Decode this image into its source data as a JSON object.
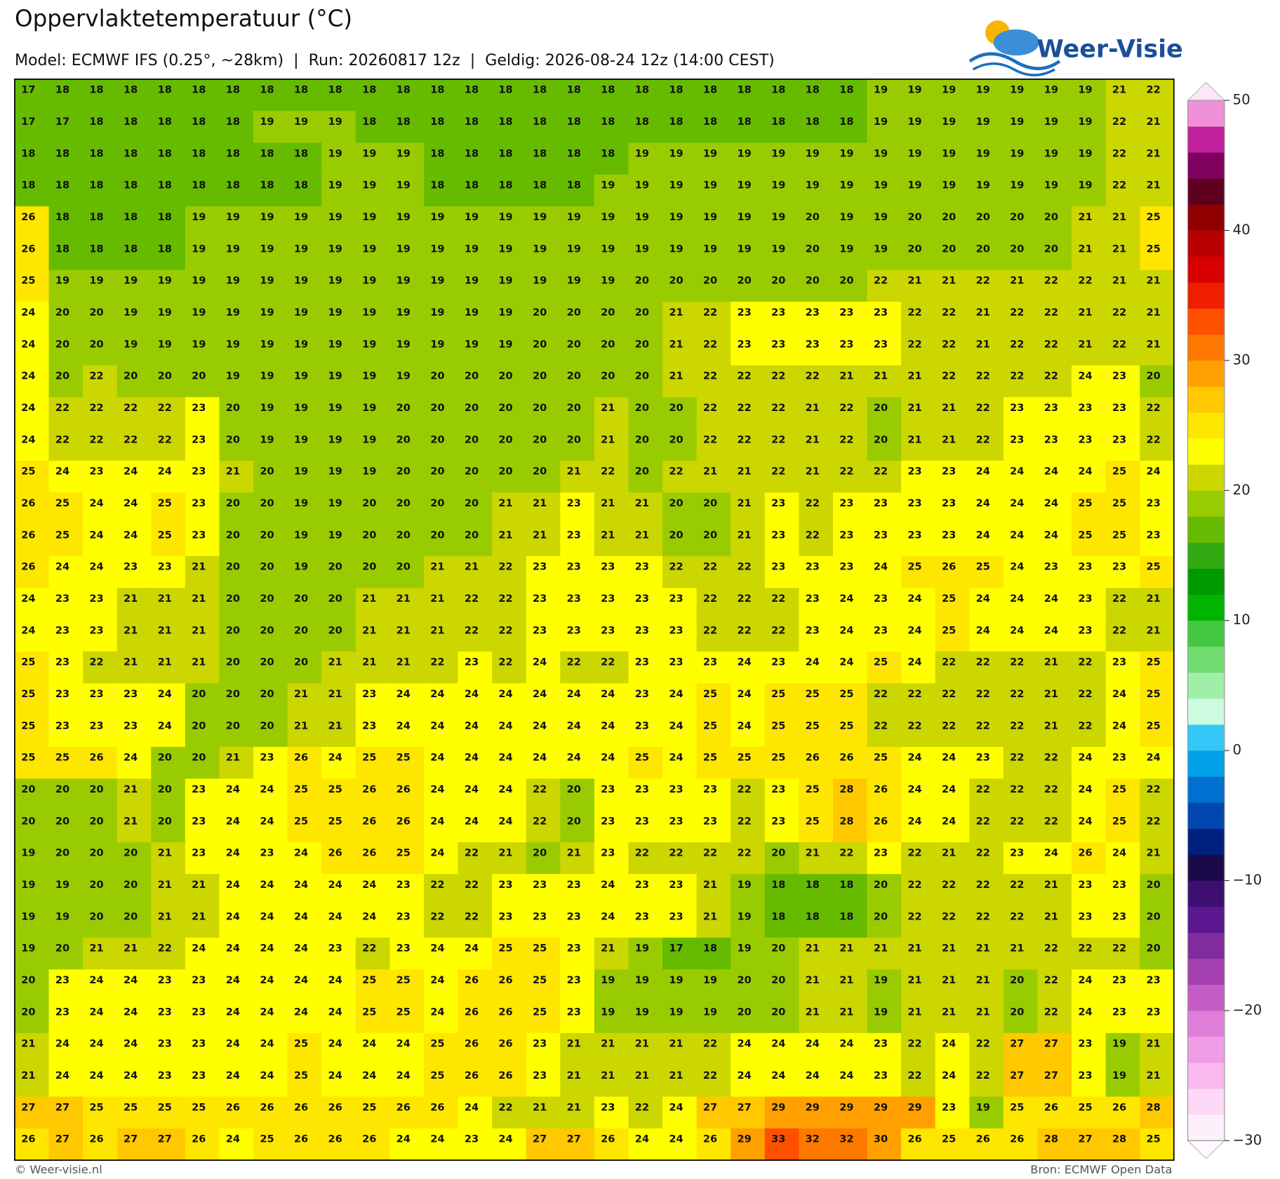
{
  "chart_data": {
    "type": "heatmap",
    "title": "Oppervlaktetemperatuur (°C)",
    "subtitle": "Model: ECMWF IFS (0.25°, ~28km)  |  Run: 20260817 12z  |  Geldig: 2026-08-24 12z (14:00 CEST)",
    "values": [
      [
        17,
        18,
        18,
        18,
        18,
        18,
        18,
        18,
        18,
        18,
        18,
        18,
        18,
        18,
        18,
        18,
        18,
        18,
        18,
        18,
        18,
        18,
        18,
        18,
        18,
        19,
        19,
        19,
        19,
        19,
        19,
        19,
        21,
        22
      ],
      [
        17,
        17,
        18,
        18,
        18,
        18,
        18,
        19,
        19,
        19,
        18,
        18,
        18,
        18,
        18,
        18,
        18,
        18,
        18,
        18,
        18,
        18,
        18,
        18,
        18,
        19,
        19,
        19,
        19,
        19,
        19,
        19,
        22,
        21
      ],
      [
        18,
        18,
        18,
        18,
        18,
        18,
        18,
        18,
        18,
        19,
        19,
        19,
        18,
        18,
        18,
        18,
        18,
        18,
        19,
        19,
        19,
        19,
        19,
        19,
        19,
        19,
        19,
        19,
        19,
        19,
        19,
        19,
        22,
        21
      ],
      [
        18,
        18,
        18,
        18,
        18,
        18,
        18,
        18,
        18,
        19,
        19,
        19,
        18,
        18,
        18,
        18,
        18,
        19,
        19,
        19,
        19,
        19,
        19,
        19,
        19,
        19,
        19,
        19,
        19,
        19,
        19,
        19,
        22,
        21
      ],
      [
        26,
        18,
        18,
        18,
        18,
        19,
        19,
        19,
        19,
        19,
        19,
        19,
        19,
        19,
        19,
        19,
        19,
        19,
        19,
        19,
        19,
        19,
        19,
        20,
        19,
        19,
        20,
        20,
        20,
        20,
        20,
        21,
        21,
        25
      ],
      [
        26,
        18,
        18,
        18,
        18,
        19,
        19,
        19,
        19,
        19,
        19,
        19,
        19,
        19,
        19,
        19,
        19,
        19,
        19,
        19,
        19,
        19,
        19,
        20,
        19,
        19,
        20,
        20,
        20,
        20,
        20,
        21,
        21,
        25
      ],
      [
        25,
        19,
        19,
        19,
        19,
        19,
        19,
        19,
        19,
        19,
        19,
        19,
        19,
        19,
        19,
        19,
        19,
        19,
        20,
        20,
        20,
        20,
        20,
        20,
        20,
        22,
        21,
        21,
        22,
        21,
        22,
        22,
        21,
        21
      ],
      [
        24,
        20,
        20,
        19,
        19,
        19,
        19,
        19,
        19,
        19,
        19,
        19,
        19,
        19,
        19,
        20,
        20,
        20,
        20,
        21,
        22,
        23,
        23,
        23,
        23,
        23,
        22,
        22,
        21,
        22,
        22,
        21,
        22,
        21
      ],
      [
        24,
        20,
        20,
        19,
        19,
        19,
        19,
        19,
        19,
        19,
        19,
        19,
        19,
        19,
        19,
        20,
        20,
        20,
        20,
        21,
        22,
        23,
        23,
        23,
        23,
        23,
        22,
        22,
        21,
        22,
        22,
        21,
        22,
        21
      ],
      [
        24,
        20,
        22,
        20,
        20,
        20,
        19,
        19,
        19,
        19,
        19,
        19,
        20,
        20,
        20,
        20,
        20,
        20,
        20,
        21,
        22,
        22,
        22,
        22,
        21,
        21,
        21,
        22,
        22,
        22,
        22,
        24,
        23,
        20
      ],
      [
        24,
        22,
        22,
        22,
        22,
        23,
        20,
        19,
        19,
        19,
        19,
        20,
        20,
        20,
        20,
        20,
        20,
        21,
        20,
        20,
        22,
        22,
        22,
        21,
        22,
        20,
        21,
        21,
        22,
        23,
        23,
        23,
        23,
        22
      ],
      [
        24,
        22,
        22,
        22,
        22,
        23,
        20,
        19,
        19,
        19,
        19,
        20,
        20,
        20,
        20,
        20,
        20,
        21,
        20,
        20,
        22,
        22,
        22,
        21,
        22,
        20,
        21,
        21,
        22,
        23,
        23,
        23,
        23,
        22
      ],
      [
        25,
        24,
        23,
        24,
        24,
        23,
        21,
        20,
        19,
        19,
        19,
        20,
        20,
        20,
        20,
        20,
        21,
        22,
        20,
        22,
        21,
        21,
        22,
        21,
        22,
        22,
        23,
        23,
        24,
        24,
        24,
        24,
        25,
        24
      ],
      [
        26,
        25,
        24,
        24,
        25,
        23,
        20,
        20,
        19,
        19,
        20,
        20,
        20,
        20,
        21,
        21,
        23,
        21,
        21,
        20,
        20,
        21,
        23,
        22,
        23,
        23,
        23,
        23,
        24,
        24,
        24,
        25,
        25,
        23
      ],
      [
        26,
        25,
        24,
        24,
        25,
        23,
        20,
        20,
        19,
        19,
        20,
        20,
        20,
        20,
        21,
        21,
        23,
        21,
        21,
        20,
        20,
        21,
        23,
        22,
        23,
        23,
        23,
        23,
        24,
        24,
        24,
        25,
        25,
        23
      ],
      [
        26,
        24,
        24,
        23,
        23,
        21,
        20,
        20,
        19,
        20,
        20,
        20,
        21,
        21,
        22,
        23,
        23,
        23,
        23,
        22,
        22,
        22,
        23,
        23,
        23,
        24,
        25,
        26,
        25,
        24,
        23,
        23,
        23,
        25
      ],
      [
        24,
        23,
        23,
        21,
        21,
        21,
        20,
        20,
        20,
        20,
        21,
        21,
        21,
        22,
        22,
        23,
        23,
        23,
        23,
        23,
        22,
        22,
        22,
        23,
        24,
        23,
        24,
        25,
        24,
        24,
        24,
        23,
        22,
        21
      ],
      [
        24,
        23,
        23,
        21,
        21,
        21,
        20,
        20,
        20,
        20,
        21,
        21,
        21,
        22,
        22,
        23,
        23,
        23,
        23,
        23,
        22,
        22,
        22,
        23,
        24,
        23,
        24,
        25,
        24,
        24,
        24,
        23,
        22,
        21
      ],
      [
        25,
        23,
        22,
        21,
        21,
        21,
        20,
        20,
        20,
        21,
        21,
        21,
        22,
        23,
        22,
        24,
        22,
        22,
        23,
        23,
        23,
        24,
        23,
        24,
        24,
        25,
        24,
        22,
        22,
        22,
        21,
        22,
        23,
        25
      ],
      [
        25,
        23,
        23,
        23,
        24,
        20,
        20,
        20,
        21,
        21,
        23,
        24,
        24,
        24,
        24,
        24,
        24,
        24,
        23,
        24,
        25,
        24,
        25,
        25,
        25,
        22,
        22,
        22,
        22,
        22,
        21,
        22,
        24,
        25
      ],
      [
        25,
        23,
        23,
        23,
        24,
        20,
        20,
        20,
        21,
        21,
        23,
        24,
        24,
        24,
        24,
        24,
        24,
        24,
        23,
        24,
        25,
        24,
        25,
        25,
        25,
        22,
        22,
        22,
        22,
        22,
        21,
        22,
        24,
        25
      ],
      [
        25,
        25,
        26,
        24,
        20,
        20,
        21,
        23,
        26,
        24,
        25,
        25,
        24,
        24,
        24,
        24,
        24,
        24,
        25,
        24,
        25,
        25,
        25,
        26,
        26,
        25,
        24,
        24,
        23,
        22,
        22,
        24,
        23,
        24
      ],
      [
        20,
        20,
        20,
        21,
        20,
        23,
        24,
        24,
        25,
        25,
        26,
        26,
        24,
        24,
        24,
        22,
        20,
        23,
        23,
        23,
        23,
        22,
        23,
        25,
        28,
        26,
        24,
        24,
        22,
        22,
        22,
        24,
        25,
        22
      ],
      [
        20,
        20,
        20,
        21,
        20,
        23,
        24,
        24,
        25,
        25,
        26,
        26,
        24,
        24,
        24,
        22,
        20,
        23,
        23,
        23,
        23,
        22,
        23,
        25,
        28,
        26,
        24,
        24,
        22,
        22,
        22,
        24,
        25,
        22
      ],
      [
        19,
        20,
        20,
        20,
        21,
        23,
        24,
        23,
        24,
        26,
        26,
        25,
        24,
        22,
        21,
        20,
        21,
        23,
        22,
        22,
        22,
        22,
        20,
        21,
        22,
        23,
        22,
        21,
        22,
        23,
        24,
        26,
        24,
        21
      ],
      [
        19,
        19,
        20,
        20,
        21,
        21,
        24,
        24,
        24,
        24,
        24,
        23,
        22,
        22,
        23,
        23,
        23,
        24,
        23,
        23,
        21,
        19,
        18,
        18,
        18,
        20,
        22,
        22,
        22,
        22,
        21,
        23,
        23,
        20
      ],
      [
        19,
        19,
        20,
        20,
        21,
        21,
        24,
        24,
        24,
        24,
        24,
        23,
        22,
        22,
        23,
        23,
        23,
        24,
        23,
        23,
        21,
        19,
        18,
        18,
        18,
        20,
        22,
        22,
        22,
        22,
        21,
        23,
        23,
        20
      ],
      [
        19,
        20,
        21,
        21,
        22,
        24,
        24,
        24,
        24,
        23,
        22,
        23,
        24,
        24,
        25,
        25,
        23,
        21,
        19,
        17,
        18,
        19,
        20,
        21,
        21,
        21,
        21,
        21,
        21,
        21,
        22,
        22,
        22,
        20
      ],
      [
        20,
        23,
        24,
        24,
        23,
        23,
        24,
        24,
        24,
        24,
        25,
        25,
        24,
        26,
        26,
        25,
        23,
        19,
        19,
        19,
        19,
        20,
        20,
        21,
        21,
        19,
        21,
        21,
        21,
        20,
        22,
        24,
        23,
        23
      ],
      [
        20,
        23,
        24,
        24,
        23,
        23,
        24,
        24,
        24,
        24,
        25,
        25,
        24,
        26,
        26,
        25,
        23,
        19,
        19,
        19,
        19,
        20,
        20,
        21,
        21,
        19,
        21,
        21,
        21,
        20,
        22,
        24,
        23,
        23
      ],
      [
        21,
        24,
        24,
        24,
        23,
        23,
        24,
        24,
        25,
        24,
        24,
        24,
        25,
        26,
        26,
        23,
        21,
        21,
        21,
        21,
        22,
        24,
        24,
        24,
        24,
        23,
        22,
        24,
        22,
        27,
        27,
        23,
        19,
        21
      ],
      [
        21,
        24,
        24,
        24,
        23,
        23,
        24,
        24,
        25,
        24,
        24,
        24,
        25,
        26,
        26,
        23,
        21,
        21,
        21,
        21,
        22,
        24,
        24,
        24,
        24,
        23,
        22,
        24,
        22,
        27,
        27,
        23,
        19,
        21
      ],
      [
        27,
        27,
        25,
        25,
        25,
        25,
        26,
        26,
        26,
        26,
        25,
        26,
        26,
        24,
        22,
        21,
        21,
        23,
        22,
        24,
        27,
        27,
        29,
        29,
        29,
        29,
        29,
        23,
        19,
        25,
        26,
        25,
        26,
        28
      ],
      [
        26,
        27,
        26,
        27,
        27,
        26,
        24,
        25,
        26,
        26,
        26,
        24,
        24,
        23,
        24,
        27,
        27,
        26,
        24,
        24,
        26,
        29,
        33,
        32,
        32,
        30,
        26,
        25,
        26,
        26,
        28,
        27,
        28,
        25
      ]
    ],
    "clim": [
      -30,
      50
    ],
    "cticks": [
      50,
      40,
      30,
      20,
      10,
      0,
      {
        "value": -10,
        "label": "−10"
      },
      {
        "value": -20,
        "label": "−20"
      },
      {
        "value": -30,
        "label": "−30"
      }
    ],
    "colors": [
      "#fdf0fb",
      "#fcd9f4",
      "#f9b8ee",
      "#ef9ee6",
      "#e07fd9",
      "#c45cc6",
      "#a440b0",
      "#812c9e",
      "#5a1790",
      "#3c0f70",
      "#1b0a4a",
      "#002080",
      "#0048b0",
      "#0070d0",
      "#00a0e8",
      "#33c8f8",
      "#ccfbe0",
      "#a0eea8",
      "#70dc70",
      "#44c844",
      "#00b400",
      "#009a00",
      "#33aa11",
      "#66bb00",
      "#99cc00",
      "#ccd600",
      "#ffff00",
      "#ffe600",
      "#ffc800",
      "#ffa000",
      "#ff7800",
      "#ff5000",
      "#f01e00",
      "#d80000",
      "#b80000",
      "#900000",
      "#600020",
      "#800060",
      "#c0209c",
      "#f090d8"
    ]
  },
  "logo": "Weer-Visie",
  "footer": {
    "left": "© Weer-visie.nl",
    "right": "Bron: ECMWF Open Data"
  }
}
